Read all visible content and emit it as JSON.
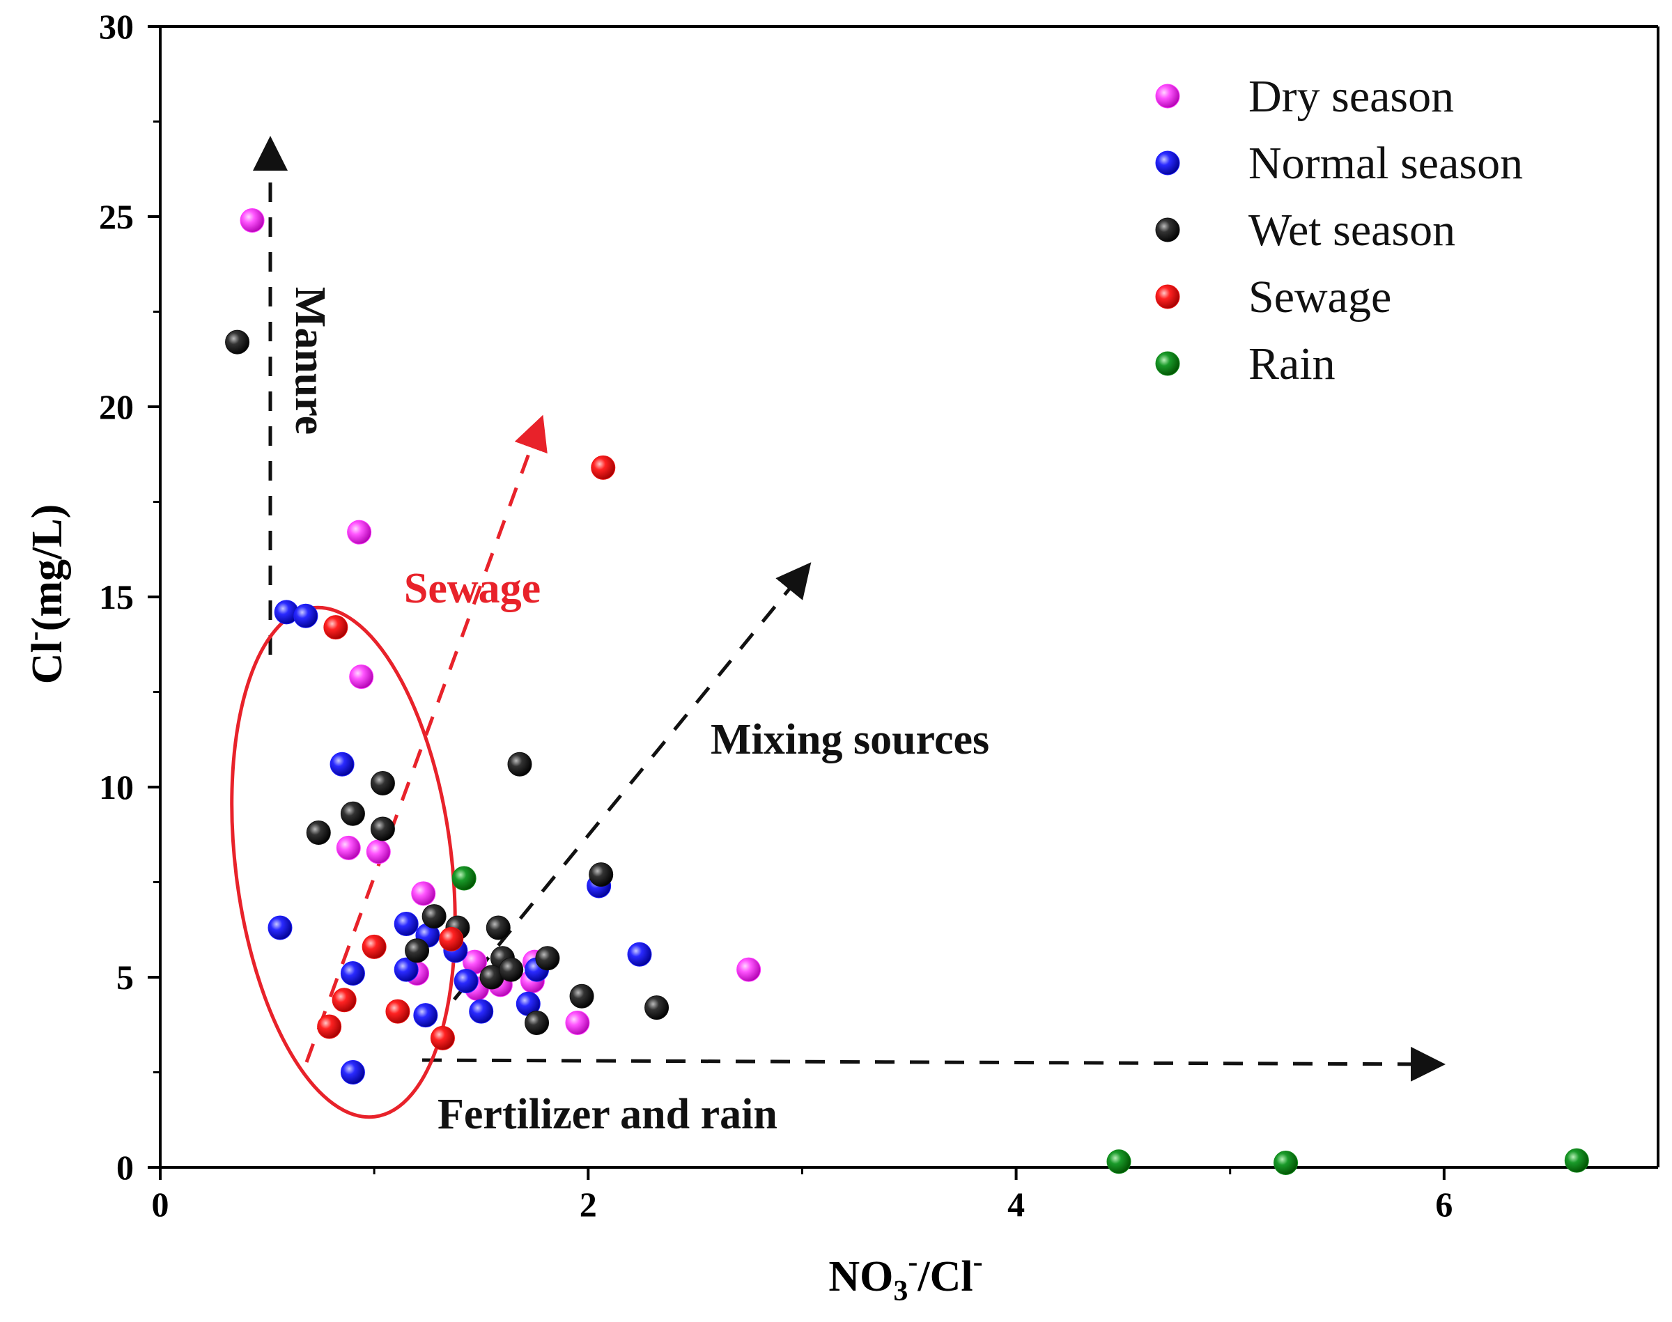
{
  "chart_data": {
    "type": "scatter",
    "title": "",
    "xlabel_main": "NO",
    "xlabel_sub": "3",
    "xlabel_sup": "-",
    "xlabel_rest": "/Cl",
    "xlabel_sup2": "-",
    "ylabel_main": "Cl",
    "ylabel_sup": "-",
    "ylabel_rest": "(mg/L)",
    "xlim": [
      0,
      7
    ],
    "ylim": [
      0,
      30
    ],
    "xticks": [
      0,
      2,
      4,
      6
    ],
    "yticks": [
      0,
      5,
      10,
      15,
      20,
      25,
      30
    ],
    "legend_position": "top-right",
    "series": [
      {
        "name": "Dry season",
        "color": "#ff33ff",
        "points": [
          [
            0.43,
            24.9
          ],
          [
            0.93,
            16.7
          ],
          [
            0.94,
            12.9
          ],
          [
            0.88,
            8.4
          ],
          [
            1.02,
            8.3
          ],
          [
            1.23,
            7.2
          ],
          [
            1.2,
            5.1
          ],
          [
            1.47,
            5.4
          ],
          [
            1.59,
            4.8
          ],
          [
            1.74,
            4.9
          ],
          [
            1.75,
            5.4
          ],
          [
            1.95,
            3.8
          ],
          [
            2.75,
            5.2
          ],
          [
            1.48,
            4.7
          ]
        ]
      },
      {
        "name": "Normal season",
        "color": "#1a1aff",
        "points": [
          [
            0.59,
            14.6
          ],
          [
            0.68,
            14.5
          ],
          [
            0.85,
            10.6
          ],
          [
            0.56,
            6.3
          ],
          [
            1.15,
            6.4
          ],
          [
            1.25,
            6.1
          ],
          [
            1.38,
            5.7
          ],
          [
            1.15,
            5.2
          ],
          [
            1.43,
            4.9
          ],
          [
            1.5,
            4.1
          ],
          [
            1.24,
            4.0
          ],
          [
            0.9,
            5.1
          ],
          [
            0.9,
            2.5
          ],
          [
            1.72,
            4.3
          ],
          [
            1.76,
            5.2
          ],
          [
            2.05,
            7.4
          ],
          [
            2.24,
            5.6
          ]
        ]
      },
      {
        "name": "Wet season",
        "color": "#111111",
        "points": [
          [
            0.36,
            21.7
          ],
          [
            1.04,
            10.1
          ],
          [
            1.68,
            10.6
          ],
          [
            0.9,
            9.3
          ],
          [
            0.74,
            8.8
          ],
          [
            1.04,
            8.9
          ],
          [
            1.28,
            6.6
          ],
          [
            1.39,
            6.3
          ],
          [
            1.58,
            6.3
          ],
          [
            1.2,
            5.7
          ],
          [
            1.6,
            5.5
          ],
          [
            1.55,
            5.0
          ],
          [
            1.64,
            5.2
          ],
          [
            1.81,
            5.5
          ],
          [
            1.76,
            3.8
          ],
          [
            1.97,
            4.5
          ],
          [
            2.32,
            4.2
          ],
          [
            2.06,
            7.7
          ]
        ]
      },
      {
        "name": "Sewage",
        "color": "#ee1111",
        "points": [
          [
            2.07,
            18.4
          ],
          [
            0.82,
            14.2
          ],
          [
            1.0,
            5.8
          ],
          [
            1.36,
            6.0
          ],
          [
            0.86,
            4.4
          ],
          [
            0.79,
            3.7
          ],
          [
            1.11,
            4.1
          ],
          [
            1.32,
            3.4
          ]
        ]
      },
      {
        "name": "Rain",
        "color": "#0f8a1a",
        "points": [
          [
            1.42,
            7.6
          ],
          [
            4.48,
            0.15
          ],
          [
            5.26,
            0.12
          ],
          [
            6.62,
            0.18
          ]
        ]
      }
    ],
    "annotations": [
      {
        "text": "Manure",
        "color": "#111111"
      },
      {
        "text": "Sewage",
        "color": "#e8222a"
      },
      {
        "text": "Mixing sources",
        "color": "#111111"
      },
      {
        "text": "Fertilizer and rain",
        "color": "#111111"
      }
    ]
  }
}
